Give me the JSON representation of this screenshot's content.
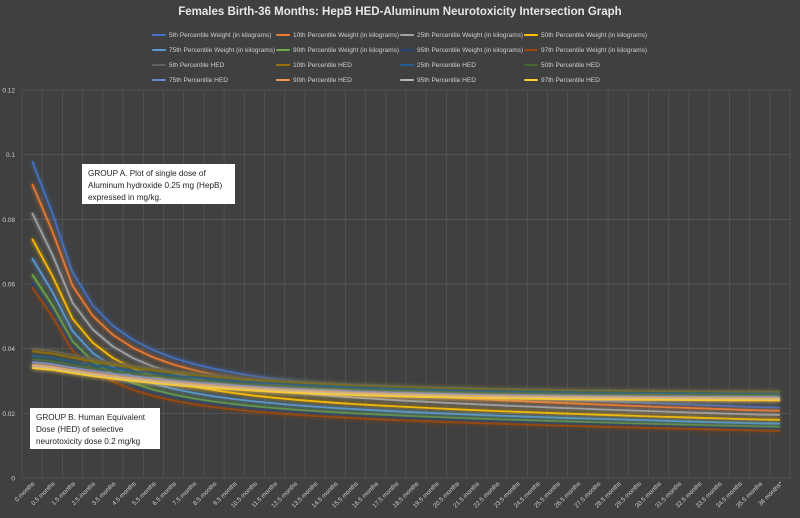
{
  "chart_data": {
    "type": "line",
    "title": "Females Birth-36 Months: HepB HED-Aluminum Neurotoxicity Intersection Graph",
    "xlabel": "",
    "ylabel": "",
    "ylim": [
      0,
      0.12
    ],
    "yticks": [
      "0",
      "0.02",
      "0.04",
      "0.06",
      "0.08",
      "0.1",
      "0.12"
    ],
    "grid": true,
    "legend_position": "top",
    "categories": [
      "0 months",
      "0.5 months",
      "1.5 months",
      "2.5 months",
      "3.5 months",
      "4.5 months",
      "5.5 months",
      "6.5 months",
      "7.5 months",
      "8.5 months",
      "9.5 months",
      "10.5 months",
      "11.5 months",
      "12.5 months",
      "13.5 months",
      "14.5 months",
      "15.5 months",
      "16.5 months",
      "17.5 months",
      "18.5 months",
      "19.5 months",
      "20.5 months",
      "21.5 months",
      "22.5 months",
      "23.5 months",
      "24.5 months",
      "25.5 months",
      "26.5 months",
      "27.5 months",
      "28.5 months",
      "29.5 months",
      "30.5 months",
      "31.5 months",
      "32.5 months",
      "33.5 months",
      "34.5 months",
      "35.5 months",
      "36 months*"
    ],
    "series": [
      {
        "name": "5th Percentile Weight (in kilograms)",
        "color": "#4472c4",
        "start": 0.098,
        "end": 0.0218
      },
      {
        "name": "10th Percentile Weight (in kilograms)",
        "color": "#ed7d31",
        "start": 0.091,
        "end": 0.0208
      },
      {
        "name": "25th Percentile Weight (in kilograms)",
        "color": "#a5a5a5",
        "start": 0.082,
        "end": 0.0195
      },
      {
        "name": "50th Percentile Weight (in kilograms)",
        "color": "#ffc000",
        "start": 0.074,
        "end": 0.018
      },
      {
        "name": "75th Percentile Weight (in kilograms)",
        "color": "#5b9bd5",
        "start": 0.068,
        "end": 0.0168
      },
      {
        "name": "90th Percentile Weight (in kilograms)",
        "color": "#70ad47",
        "start": 0.063,
        "end": 0.0158
      },
      {
        "name": "95th Percentile Weight (in kilograms)",
        "color": "#264478",
        "start": 0.0605,
        "end": 0.0153
      },
      {
        "name": "97th Percentile Weight (in kilograms)",
        "color": "#9e480e",
        "start": 0.059,
        "end": 0.0146
      },
      {
        "name": "5th Percentile HED",
        "color": "#636363",
        "start": 0.04,
        "end": 0.0268
      },
      {
        "name": "10th Percentile HED",
        "color": "#997300",
        "start": 0.0392,
        "end": 0.0265
      },
      {
        "name": "25th Percentile HED",
        "color": "#255e91",
        "start": 0.0378,
        "end": 0.0261
      },
      {
        "name": "50th Percentile HED",
        "color": "#43682b",
        "start": 0.0368,
        "end": 0.0256
      },
      {
        "name": "75th Percentile HED",
        "color": "#698ed0",
        "start": 0.0358,
        "end": 0.025
      },
      {
        "name": "90th Percentile HED",
        "color": "#f1975a",
        "start": 0.035,
        "end": 0.0246
      },
      {
        "name": "95th Percentile HED",
        "color": "#b7b7b7",
        "start": 0.0345,
        "end": 0.0243
      },
      {
        "name": "97th Percentile HED",
        "color": "#ffcd33",
        "start": 0.034,
        "end": 0.024
      }
    ],
    "annotations": [
      "GROUP A. Plot of single dose of Aluminum hydroxide 0.25 mg (HepB) expressed in mg/kg.",
      "GROUP B. Human Equivalent Dose (HED) of selective neurotoxicity dose 0.2 mg/kg"
    ]
  },
  "legend": [
    "5th Percentile Weight (in kilograms)",
    "10th Percentile Weight (in kilograms)",
    "25th Percentile Weight (in kilograms)",
    "50th Percentile Weight (in kilograms)",
    "75th Percentile Weight (in kilograms)",
    "90th Percentile Weight (in kilograms)",
    "95th Percentile Weight (in kilograms)",
    "97th Percentile Weight (in kilograms)",
    "5th Percentile HED",
    "10th Percentile HED",
    "25th Percentile HED",
    "50th Percentile HED",
    "75th Percentile HED",
    "90th Percentile HED",
    "95th Percentile HED",
    "97th Percentile HED"
  ]
}
